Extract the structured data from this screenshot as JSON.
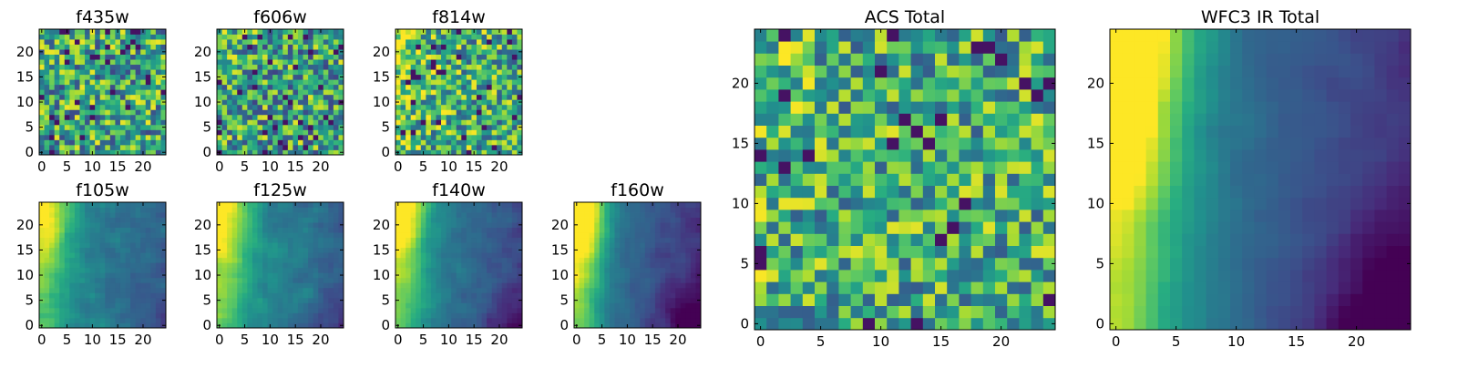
{
  "chart_data": {
    "type": "heatmap",
    "colormap": "viridis",
    "grid": false,
    "panels": [
      {
        "key": "f435w",
        "title": "f435w",
        "pattern": "noise",
        "bias": 0.6,
        "grad": 0.0,
        "brightCorner": 0.0,
        "darkCorner": 0.0,
        "noise": 0.38,
        "seed": 11,
        "xlim": [
          0,
          24
        ],
        "ylim": [
          0,
          24
        ],
        "xticks": [
          0,
          5,
          10,
          15,
          20
        ],
        "yticks": [
          0,
          5,
          10,
          15,
          20
        ]
      },
      {
        "key": "f606w",
        "title": "f606w",
        "pattern": "noise",
        "bias": 0.58,
        "grad": 0.0,
        "brightCorner": 0.05,
        "darkCorner": 0.0,
        "noise": 0.38,
        "seed": 23,
        "xlim": [
          0,
          24
        ],
        "ylim": [
          0,
          24
        ],
        "xticks": [
          0,
          5,
          10,
          15,
          20
        ],
        "yticks": [
          0,
          5,
          10,
          15,
          20
        ]
      },
      {
        "key": "f814w",
        "title": "f814w",
        "pattern": "noise",
        "bias": 0.64,
        "grad": 0.05,
        "brightCorner": 0.1,
        "darkCorner": 0.0,
        "noise": 0.36,
        "seed": 37,
        "xlim": [
          0,
          24
        ],
        "ylim": [
          0,
          24
        ],
        "xticks": [
          0,
          5,
          10,
          15,
          20
        ],
        "yticks": [
          0,
          5,
          10,
          15,
          20
        ]
      },
      {
        "key": "f105w",
        "title": "f105w",
        "pattern": "smooth",
        "bias": 0.42,
        "grad": 0.22,
        "brightCorner": 0.35,
        "darkCorner": 0.1,
        "noise": 0.16,
        "seed": 41,
        "xlim": [
          0,
          24
        ],
        "ylim": [
          0,
          24
        ],
        "xticks": [
          0,
          5,
          10,
          15,
          20
        ],
        "yticks": [
          0,
          5,
          10,
          15,
          20
        ]
      },
      {
        "key": "f125w",
        "title": "f125w",
        "pattern": "smooth",
        "bias": 0.45,
        "grad": 0.22,
        "brightCorner": 0.35,
        "darkCorner": 0.12,
        "noise": 0.16,
        "seed": 53,
        "xlim": [
          0,
          24
        ],
        "ylim": [
          0,
          24
        ],
        "xticks": [
          0,
          5,
          10,
          15,
          20
        ],
        "yticks": [
          0,
          5,
          10,
          15,
          20
        ]
      },
      {
        "key": "f140w",
        "title": "f140w",
        "pattern": "smooth",
        "bias": 0.38,
        "grad": 0.28,
        "brightCorner": 0.45,
        "darkCorner": 0.18,
        "noise": 0.14,
        "seed": 67,
        "xlim": [
          0,
          24
        ],
        "ylim": [
          0,
          24
        ],
        "xticks": [
          0,
          5,
          10,
          15,
          20
        ],
        "yticks": [
          0,
          5,
          10,
          15,
          20
        ]
      },
      {
        "key": "f160w",
        "title": "f160w",
        "pattern": "smooth",
        "bias": 0.32,
        "grad": 0.34,
        "brightCorner": 0.55,
        "darkCorner": 0.28,
        "noise": 0.12,
        "seed": 79,
        "xlim": [
          0,
          24
        ],
        "ylim": [
          0,
          24
        ],
        "xticks": [
          0,
          5,
          10,
          15,
          20
        ],
        "yticks": [
          0,
          5,
          10,
          15,
          20
        ]
      },
      {
        "key": "acs_total",
        "title": "ACS Total",
        "pattern": "noise",
        "bias": 0.62,
        "grad": 0.0,
        "brightCorner": 0.05,
        "darkCorner": 0.0,
        "noise": 0.34,
        "seed": 97,
        "xlim": [
          0,
          24
        ],
        "ylim": [
          0,
          24
        ],
        "xticks": [
          0,
          5,
          10,
          15,
          20
        ],
        "yticks": [
          0,
          5,
          10,
          15,
          20
        ]
      },
      {
        "key": "wfc3_ir_total",
        "title": "WFC3 IR Total",
        "pattern": "smooth",
        "bias": 0.34,
        "grad": 0.36,
        "brightCorner": 0.6,
        "darkCorner": 0.32,
        "noise": 0.08,
        "seed": 101,
        "xlim": [
          0,
          24
        ],
        "ylim": [
          0,
          24
        ],
        "xticks": [
          0,
          5,
          10,
          15,
          20
        ],
        "yticks": [
          0,
          5,
          10,
          15,
          20
        ]
      }
    ]
  }
}
